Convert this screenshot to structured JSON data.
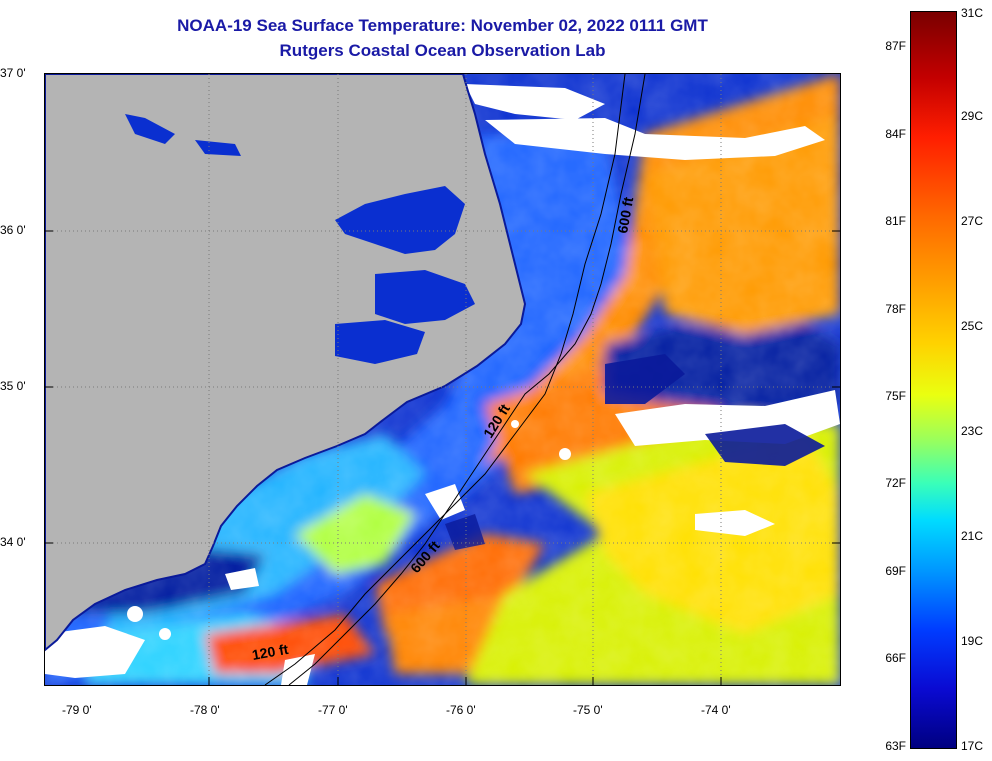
{
  "title": {
    "line1": "NOAA-19 Sea Surface Temperature:  November 02, 2022 0111 GMT",
    "line2": "Rutgers Coastal Ocean Observation Lab"
  },
  "axes": {
    "lat_labels": [
      "37 0'",
      "36 0'",
      "35 0'",
      "34 0'"
    ],
    "lon_labels": [
      "-79 0'",
      "-78 0'",
      "-77 0'",
      "-76 0'",
      "-75 0'",
      "-74 0'"
    ]
  },
  "isobath_labels": [
    "600 ft",
    "120 ft",
    "600 ft",
    "120 ft"
  ],
  "colorbar": {
    "fahrenheit": [
      "87F",
      "84F",
      "81F",
      "78F",
      "75F",
      "72F",
      "69F",
      "66F",
      "63F"
    ],
    "celsius": [
      "31C",
      "29C",
      "27C",
      "25C",
      "23C",
      "21C",
      "19C",
      "17C"
    ]
  },
  "colors": {
    "land": "#b4b4b4",
    "cold": "#0a1fb0",
    "warm": "#ff8a00",
    "cloud": "#ffffff"
  }
}
